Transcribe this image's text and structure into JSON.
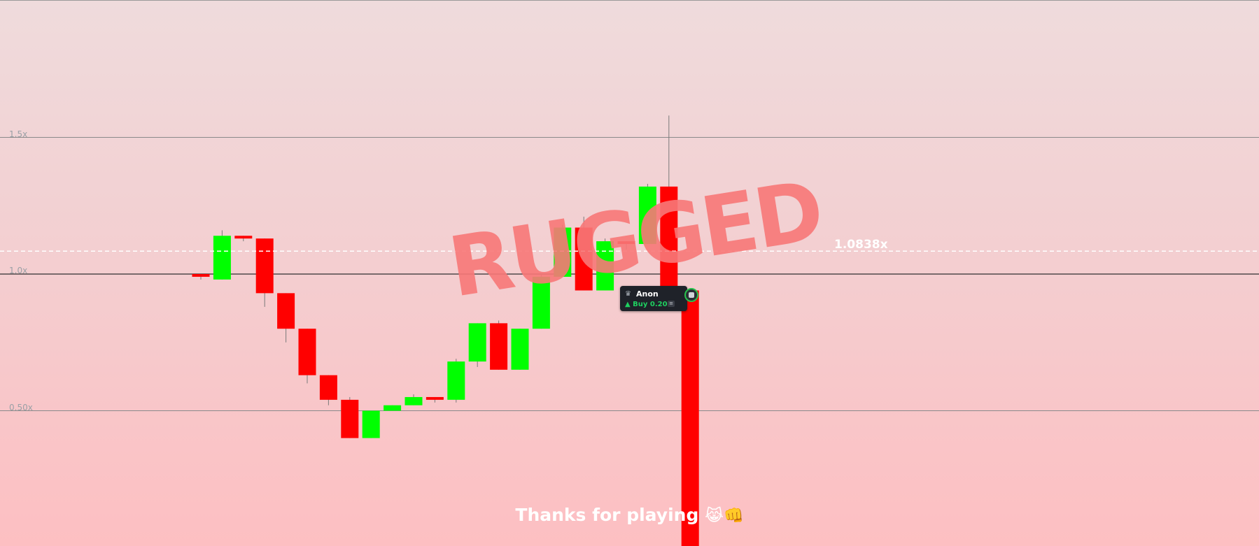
{
  "chart_data": {
    "type": "candlestick",
    "y_ticks": [
      {
        "value": 1.5,
        "label": "1.5x"
      },
      {
        "value": 1.0,
        "label": "1.0x"
      },
      {
        "value": 0.5,
        "label": "0.50x"
      }
    ],
    "current_value": 1.0838,
    "current_label": "1.0838x",
    "candles": [
      {
        "open": 1.0,
        "close": 0.99,
        "high": 1.0,
        "low": 0.98
      },
      {
        "open": 0.98,
        "close": 1.14,
        "high": 1.16,
        "low": 0.98
      },
      {
        "open": 1.14,
        "close": 1.13,
        "high": 1.14,
        "low": 1.12
      },
      {
        "open": 1.13,
        "close": 0.93,
        "high": 1.13,
        "low": 0.88
      },
      {
        "open": 0.93,
        "close": 0.8,
        "high": 0.93,
        "low": 0.75
      },
      {
        "open": 0.8,
        "close": 0.63,
        "high": 0.8,
        "low": 0.6
      },
      {
        "open": 0.63,
        "close": 0.54,
        "high": 0.63,
        "low": 0.52
      },
      {
        "open": 0.54,
        "close": 0.4,
        "high": 0.55,
        "low": 0.4
      },
      {
        "open": 0.4,
        "close": 0.5,
        "high": 0.5,
        "low": 0.4
      },
      {
        "open": 0.5,
        "close": 0.52,
        "high": 0.52,
        "low": 0.5
      },
      {
        "open": 0.52,
        "close": 0.55,
        "high": 0.56,
        "low": 0.52
      },
      {
        "open": 0.55,
        "close": 0.54,
        "high": 0.55,
        "low": 0.53
      },
      {
        "open": 0.54,
        "close": 0.68,
        "high": 0.69,
        "low": 0.53
      },
      {
        "open": 0.68,
        "close": 0.82,
        "high": 0.82,
        "low": 0.66
      },
      {
        "open": 0.82,
        "close": 0.65,
        "high": 0.83,
        "low": 0.65
      },
      {
        "open": 0.65,
        "close": 0.8,
        "high": 0.8,
        "low": 0.65
      },
      {
        "open": 0.8,
        "close": 0.99,
        "high": 1.0,
        "low": 0.8
      },
      {
        "open": 0.99,
        "close": 1.17,
        "high": 1.18,
        "low": 0.99
      },
      {
        "open": 1.17,
        "close": 0.94,
        "high": 1.21,
        "low": 0.94
      },
      {
        "open": 0.94,
        "close": 1.12,
        "high": 1.13,
        "low": 0.94
      },
      {
        "open": 1.12,
        "close": 1.11,
        "high": 1.12,
        "low": 1.09
      },
      {
        "open": 1.11,
        "close": 1.32,
        "high": 1.33,
        "low": 1.11
      },
      {
        "open": 1.32,
        "close": 0.94,
        "high": 1.58,
        "low": 0.94
      },
      {
        "open": 0.94,
        "close": -0.02,
        "high": 0.94,
        "low": -0.02
      }
    ],
    "colors": {
      "up": "#00ff00",
      "down": "#ff0000",
      "wick": "#7a7a7a"
    }
  },
  "overlay": {
    "text": "RUGGED",
    "color": "#f87878"
  },
  "trade_tooltip": {
    "icon": "crown-icon",
    "name": "Anon",
    "action": "▲ Buy 0.200",
    "action_color": "#1fd060"
  },
  "footer": {
    "message": "Thanks for playing",
    "emojis": "😹👊"
  }
}
